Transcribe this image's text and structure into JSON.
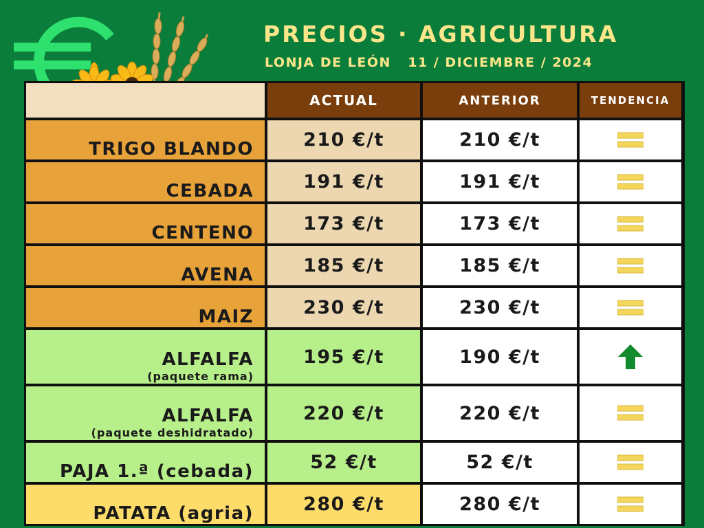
{
  "header": {
    "title": "PRECIOS · AGRICULTURA",
    "subtitle": "LONJA DE LEÓN   11 / DICIEMBRE / 2024",
    "logo_icons": [
      "euro-icon",
      "wheat-icon",
      "sunflower-icon"
    ]
  },
  "table": {
    "columns": [
      "",
      "ACTUAL",
      "ANTERIOR",
      "TENDENCIA"
    ],
    "rows": [
      {
        "name": "TRIGO BLANDO",
        "detail": "",
        "actual": "210 €/t",
        "anterior": "210 €/t",
        "trend": "equal"
      },
      {
        "name": "CEBADA",
        "detail": "",
        "actual": "191 €/t",
        "anterior": "191 €/t",
        "trend": "equal"
      },
      {
        "name": "CENTENO",
        "detail": "",
        "actual": "173 €/t",
        "anterior": "173 €/t",
        "trend": "equal"
      },
      {
        "name": "AVENA",
        "detail": "",
        "actual": "185 €/t",
        "anterior": "185 €/t",
        "trend": "equal"
      },
      {
        "name": "MAIZ",
        "detail": "",
        "actual": "230 €/t",
        "anterior": "230 €/t",
        "trend": "equal"
      },
      {
        "name": "ALFALFA",
        "detail": "(paquete rama)",
        "actual": "195 €/t",
        "anterior": "190 €/t",
        "trend": "up"
      },
      {
        "name": "ALFALFA",
        "detail": "(paquete deshidratado)",
        "actual": "220 €/t",
        "anterior": "220 €/t",
        "trend": "equal"
      },
      {
        "name": "PAJA 1.ª (cebada)",
        "detail": "",
        "actual": "52 €/t",
        "anterior": "52 €/t",
        "trend": "equal"
      },
      {
        "name": "PATATA (agria)",
        "detail": "",
        "actual": "280 €/t",
        "anterior": "280 €/t",
        "trend": "equal"
      }
    ]
  },
  "colors": {
    "background": "#0a7d3a",
    "title_text": "#fde68a",
    "header_cell": "#7a3e0c",
    "cereal_name": "#e8a23a",
    "cereal_actual": "#ecd7b0",
    "forage": "#b7f08a",
    "potato": "#fedc6a",
    "trend_equal": "#f5d65c",
    "trend_up": "#128a2e"
  }
}
